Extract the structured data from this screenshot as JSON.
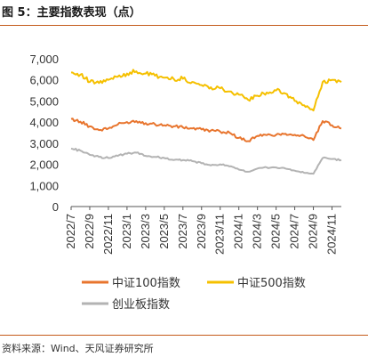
{
  "header": {
    "title": "图 5：主要指数表现（点）"
  },
  "footer": {
    "source": "资料来源：Wind、天风证券研究所"
  },
  "colors": {
    "csi1000": "#e8752e",
    "csi500": "#f5c000",
    "chinext": "#b3b3b3",
    "accent": "#c45a1a"
  },
  "chart_data": {
    "type": "line",
    "title": "",
    "xlabel": "",
    "ylabel": "",
    "ylim": [
      0,
      7000
    ],
    "yticks": [
      "0",
      "1,000",
      "2,000",
      "3,000",
      "4,000",
      "5,000",
      "6,000",
      "7,000"
    ],
    "xticks": [
      "2022/7",
      "2022/9",
      "2022/11",
      "2023/1",
      "2023/3",
      "2023/5",
      "2023/7",
      "2023/9",
      "2023/11",
      "2024/1",
      "2024/3",
      "2024/5",
      "2024/7",
      "2024/9",
      "2024/11"
    ],
    "x": [
      "2022/7",
      "2022/8",
      "2022/9",
      "2022/10",
      "2022/11",
      "2022/12",
      "2023/1",
      "2023/2",
      "2023/3",
      "2023/4",
      "2023/5",
      "2023/6",
      "2023/7",
      "2023/8",
      "2023/9",
      "2023/10",
      "2023/11",
      "2023/12",
      "2024/1",
      "2024/2",
      "2024/3",
      "2024/4",
      "2024/5",
      "2024/6",
      "2024/7",
      "2024/8",
      "2024/9",
      "2024/10",
      "2024/11",
      "2024/12"
    ],
    "grid": false,
    "legend_position": "bottom",
    "series": [
      {
        "name": "中证100指数",
        "color_key": "csi1000",
        "values": [
          4150,
          4020,
          3800,
          3620,
          3700,
          3880,
          4000,
          4050,
          3950,
          3900,
          3850,
          3800,
          3750,
          3700,
          3650,
          3600,
          3550,
          3500,
          3250,
          3100,
          3350,
          3380,
          3400,
          3450,
          3400,
          3350,
          3150,
          4050,
          3850,
          3700
        ]
      },
      {
        "name": "中证500指数",
        "color_key": "csi500",
        "values": [
          6350,
          6250,
          5900,
          5850,
          6000,
          6150,
          6300,
          6400,
          6300,
          6200,
          6100,
          6050,
          6050,
          5900,
          5750,
          5650,
          5600,
          5450,
          5300,
          5050,
          5250,
          5400,
          5500,
          5350,
          5000,
          4800,
          4550,
          5900,
          6000,
          5900
        ]
      },
      {
        "name": "创业板指数",
        "color_key": "chinext",
        "values": [
          2750,
          2650,
          2450,
          2350,
          2300,
          2400,
          2500,
          2550,
          2400,
          2350,
          2300,
          2200,
          2200,
          2150,
          2050,
          1950,
          2000,
          1900,
          1750,
          1650,
          1800,
          1850,
          1850,
          1800,
          1700,
          1600,
          1550,
          2300,
          2250,
          2200
        ]
      }
    ]
  }
}
